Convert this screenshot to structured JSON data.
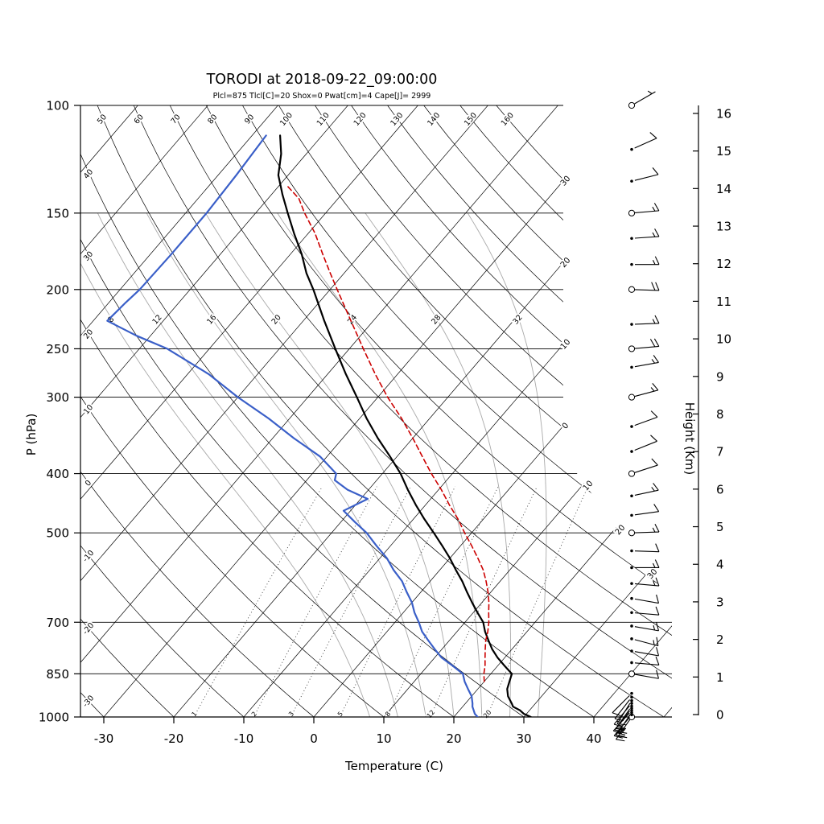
{
  "title": "TORODI at 2018-09-22_09:00:00",
  "subtitle": "Plcl=875 Tlcl[C]=20 Shox=0 Pwat[cm]=4 Cape[J]= 2999",
  "indices": {
    "Plcl": 875,
    "Tlcl_C": 20,
    "Shox": 0,
    "Pwat_cm": 4,
    "Cape_J": 2999
  },
  "colors": {
    "temperature": "#000000",
    "dewpoint": "#3a5fc8",
    "parcel": "#cc0000",
    "grid": "#000000",
    "moist_adiabat": "#a9a9a9",
    "mixing_ratio": "#3c3c3c",
    "subtitle": "#c3541c"
  },
  "axes": {
    "pressure_label": "P (hPa)",
    "pressure_ticks": [
      100,
      150,
      200,
      250,
      300,
      400,
      500,
      700,
      850,
      1000
    ],
    "temperature_label": "Temperature (C)",
    "temperature_ticks": [
      -30,
      -20,
      -10,
      0,
      10,
      20,
      30,
      40
    ],
    "height_label": "Height (Km)",
    "height_ticks": [
      0,
      1,
      2,
      3,
      4,
      5,
      6,
      7,
      8,
      9,
      10,
      11,
      12,
      13,
      14,
      15,
      16
    ]
  },
  "grid_lines": {
    "isotherms": [
      -120,
      -110,
      -100,
      -90,
      -80,
      -70,
      -60,
      -50,
      -40,
      -30,
      -20,
      -10,
      0,
      10,
      20,
      30,
      40,
      50
    ],
    "isotherm_labels": [
      {
        "value": -30,
        "label": "30"
      },
      {
        "value": -20,
        "label": "20"
      },
      {
        "value": -10,
        "label": "10"
      },
      {
        "value": 0,
        "label": "0"
      },
      {
        "value": 10,
        "label": "10"
      },
      {
        "value": 20,
        "label": "20"
      },
      {
        "value": 30,
        "label": "30"
      }
    ],
    "dry_adiabats": [
      -30,
      -20,
      -10,
      0,
      10,
      20,
      30,
      40,
      50,
      60,
      70,
      80,
      90,
      100,
      110,
      120,
      130,
      140,
      150,
      160
    ],
    "moist_adiabats": [
      8,
      12,
      16,
      20,
      24,
      28,
      32
    ],
    "mixing_ratios": [
      1,
      2,
      3,
      5,
      8,
      12,
      20
    ]
  },
  "chart_data": {
    "type": "line",
    "diagram": "skew-T log-P sounding",
    "x_axis": {
      "label": "Temperature (C)",
      "range": [
        -35,
        45
      ]
    },
    "y_axis": {
      "label": "P (hPa)",
      "scale": "log",
      "range": [
        1050,
        100
      ]
    },
    "points_format": "[pressure_hPa, temperature_C]",
    "series": [
      {
        "name": "temperature",
        "color_key": "temperature",
        "dashed": false,
        "points": [
          [
            1000,
            31
          ],
          [
            988,
            29.6
          ],
          [
            975,
            28.6
          ],
          [
            962,
            27.2
          ],
          [
            950,
            26.6
          ],
          [
            925,
            25.2
          ],
          [
            900,
            24.2
          ],
          [
            875,
            23.6
          ],
          [
            850,
            23
          ],
          [
            825,
            21
          ],
          [
            800,
            19
          ],
          [
            775,
            17.2
          ],
          [
            750,
            15.6
          ],
          [
            725,
            14
          ],
          [
            700,
            12.6
          ],
          [
            675,
            10.6
          ],
          [
            650,
            8.6
          ],
          [
            625,
            6.6
          ],
          [
            600,
            4.6
          ],
          [
            575,
            2.3
          ],
          [
            550,
            0
          ],
          [
            525,
            -2.6
          ],
          [
            500,
            -5.4
          ],
          [
            475,
            -8.4
          ],
          [
            450,
            -11.4
          ],
          [
            425,
            -14.4
          ],
          [
            400,
            -17.4
          ],
          [
            375,
            -21
          ],
          [
            350,
            -25
          ],
          [
            325,
            -29
          ],
          [
            300,
            -33
          ],
          [
            275,
            -37.4
          ],
          [
            250,
            -42
          ],
          [
            225,
            -47
          ],
          [
            200,
            -52.4
          ],
          [
            188,
            -55.4
          ],
          [
            175,
            -58.4
          ],
          [
            162,
            -62
          ],
          [
            150,
            -65.4
          ],
          [
            140,
            -68.4
          ],
          [
            130,
            -71.4
          ],
          [
            120,
            -73.6
          ],
          [
            112,
            -76
          ]
        ]
      },
      {
        "name": "dewpoint",
        "color_key": "dewpoint",
        "dashed": false,
        "points": [
          [
            1000,
            23.4
          ],
          [
            988,
            22.6
          ],
          [
            975,
            22
          ],
          [
            962,
            21.4
          ],
          [
            950,
            21
          ],
          [
            925,
            20
          ],
          [
            900,
            18.6
          ],
          [
            875,
            17.2
          ],
          [
            850,
            16
          ],
          [
            825,
            13.6
          ],
          [
            800,
            11
          ],
          [
            775,
            9
          ],
          [
            750,
            7
          ],
          [
            725,
            5
          ],
          [
            700,
            3.4
          ],
          [
            675,
            1.6
          ],
          [
            650,
            0
          ],
          [
            625,
            -2
          ],
          [
            600,
            -4
          ],
          [
            575,
            -6.6
          ],
          [
            550,
            -9
          ],
          [
            525,
            -12
          ],
          [
            500,
            -15
          ],
          [
            480,
            -18
          ],
          [
            460,
            -21
          ],
          [
            440,
            -19
          ],
          [
            425,
            -23
          ],
          [
            410,
            -26
          ],
          [
            400,
            -26.6
          ],
          [
            375,
            -31
          ],
          [
            350,
            -37
          ],
          [
            325,
            -43
          ],
          [
            300,
            -50
          ],
          [
            275,
            -57
          ],
          [
            250,
            -66
          ],
          [
            238,
            -72
          ],
          [
            225,
            -78
          ],
          [
            210,
            -77.6
          ],
          [
            200,
            -77.2
          ],
          [
            175,
            -77
          ],
          [
            150,
            -77
          ],
          [
            130,
            -77.4
          ],
          [
            112,
            -78
          ]
        ]
      },
      {
        "name": "parcel",
        "color_key": "parcel",
        "dashed": true,
        "points": [
          [
            875,
            20
          ],
          [
            850,
            19
          ],
          [
            825,
            18.2
          ],
          [
            800,
            17.2
          ],
          [
            775,
            16.2
          ],
          [
            750,
            15.2
          ],
          [
            725,
            14.4
          ],
          [
            700,
            13.4
          ],
          [
            675,
            12.2
          ],
          [
            650,
            11
          ],
          [
            625,
            9.6
          ],
          [
            600,
            8
          ],
          [
            575,
            6.2
          ],
          [
            550,
            4
          ],
          [
            525,
            1.6
          ],
          [
            500,
            -1
          ],
          [
            475,
            -3.6
          ],
          [
            450,
            -6.6
          ],
          [
            425,
            -9.6
          ],
          [
            400,
            -13
          ],
          [
            375,
            -16.4
          ],
          [
            350,
            -20
          ],
          [
            325,
            -24
          ],
          [
            300,
            -28.6
          ],
          [
            275,
            -33.2
          ],
          [
            250,
            -38
          ],
          [
            225,
            -43.2
          ],
          [
            200,
            -49
          ],
          [
            188,
            -52
          ],
          [
            175,
            -55.4
          ],
          [
            162,
            -59
          ],
          [
            150,
            -63
          ],
          [
            142,
            -65.6
          ],
          [
            135,
            -69
          ]
        ]
      }
    ],
    "wind_barbs_format": "[pressure_hPa, wind_from_deg, speed_kt, station_marker(1=open-circle,0=dot)]",
    "wind_barbs": [
      [
        1000,
        215,
        20,
        1
      ],
      [
        992,
        220,
        25,
        0
      ],
      [
        984,
        215,
        25,
        0
      ],
      [
        976,
        222,
        20,
        0
      ],
      [
        968,
        218,
        20,
        0
      ],
      [
        960,
        215,
        15,
        0
      ],
      [
        950,
        220,
        15,
        0
      ],
      [
        940,
        212,
        10,
        0
      ],
      [
        928,
        218,
        10,
        0
      ],
      [
        915,
        225,
        10,
        0
      ],
      [
        850,
        100,
        10,
        1
      ],
      [
        815,
        95,
        10,
        0
      ],
      [
        780,
        100,
        10,
        0
      ],
      [
        745,
        105,
        15,
        0
      ],
      [
        710,
        100,
        15,
        0
      ],
      [
        675,
        95,
        10,
        0
      ],
      [
        640,
        100,
        10,
        0
      ],
      [
        605,
        95,
        15,
        0
      ],
      [
        570,
        90,
        15,
        0
      ],
      [
        535,
        92,
        10,
        0
      ],
      [
        500,
        88,
        15,
        1
      ],
      [
        468,
        82,
        10,
        0
      ],
      [
        435,
        78,
        15,
        0
      ],
      [
        400,
        72,
        10,
        1
      ],
      [
        368,
        68,
        10,
        0
      ],
      [
        335,
        70,
        10,
        0
      ],
      [
        300,
        75,
        15,
        1
      ],
      [
        268,
        80,
        15,
        0
      ],
      [
        250,
        85,
        20,
        1
      ],
      [
        228,
        88,
        15,
        0
      ],
      [
        200,
        92,
        20,
        1
      ],
      [
        182,
        90,
        15,
        0
      ],
      [
        165,
        86,
        15,
        0
      ],
      [
        150,
        85,
        15,
        1
      ],
      [
        133,
        76,
        10,
        0
      ],
      [
        118,
        66,
        10,
        0
      ],
      [
        100,
        60,
        5,
        1
      ]
    ]
  }
}
